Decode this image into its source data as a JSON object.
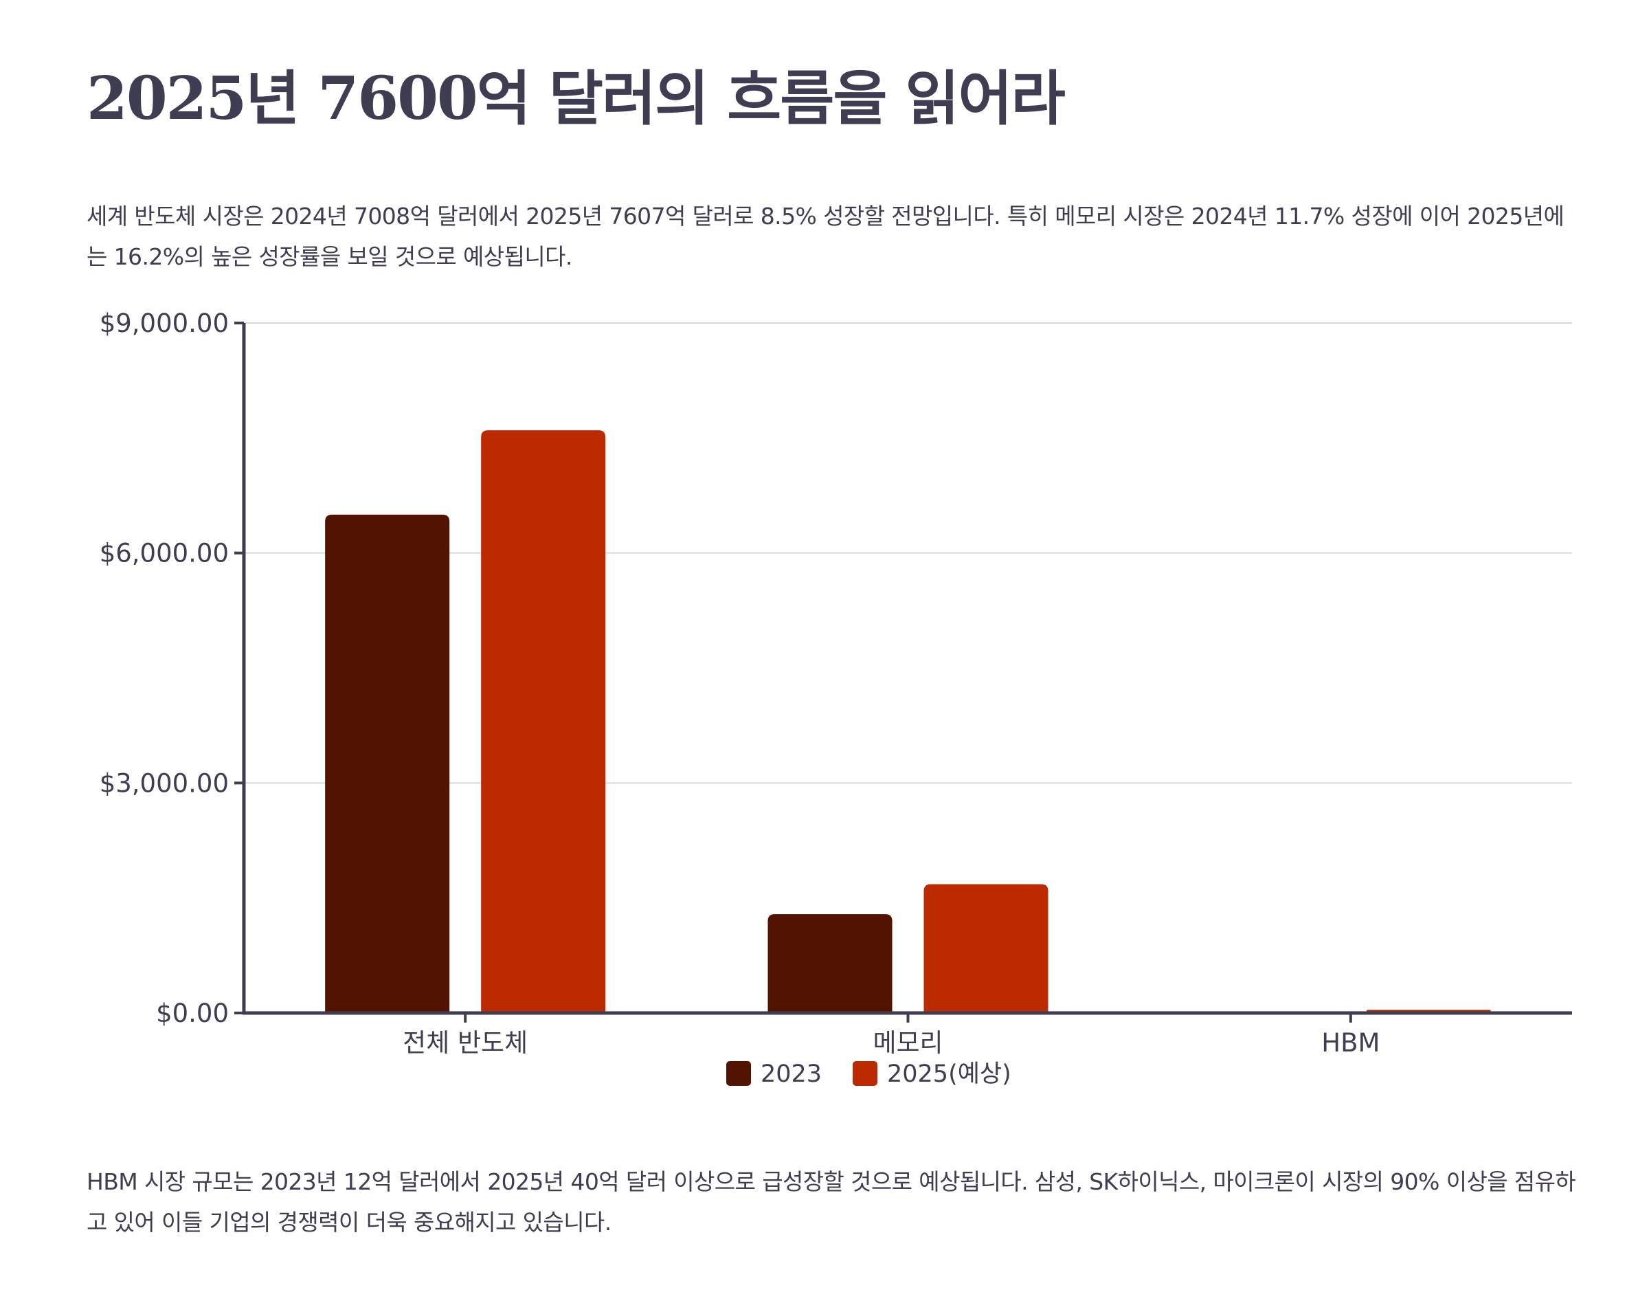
{
  "title": "2025년 7600억 달러의 흐름을 읽어라",
  "intro_text": "세계 반도체 시장은 2024년 7008억 달러에서 2025년 7607억 달러로 8.5% 성장할 전망입니다. 특히 메모리 시장은 2024년 11.7% 성장에 이어 2025년에는 16.2%의 높은 성장률을 보일 것으로 예상됩니다.",
  "outro_text": "HBM 시장 규모는 2023년 12억 달러에서 2025년 40억 달러 이상으로 급성장할 것으로 예상됩니다. 삼성, SK하이닉스, 마이크론이 시장의 90% 이상을 점유하고 있어 이들 기업의 경쟁력이 더욱 중요해지고 있습니다.",
  "colors": {
    "series_2023": "#521400",
    "series_2025": "#bb2a00",
    "axis": "#3f3d52",
    "grid": "#d8d8d8"
  },
  "chart_data": {
    "type": "bar",
    "title": "",
    "xlabel": "",
    "ylabel": "",
    "categories": [
      "전체 반도체",
      "메모리",
      "HBM"
    ],
    "series": [
      {
        "name": "2023",
        "values": [
          6500,
          1290,
          12
        ]
      },
      {
        "name": "2025(예상)",
        "values": [
          7600,
          1680,
          40
        ]
      }
    ],
    "ylim": [
      0,
      9000
    ],
    "yticks": [
      0,
      3000,
      6000,
      9000
    ],
    "ytick_labels": [
      "$0.00",
      "$3,000.00",
      "$6,000.00",
      "$9,000.00"
    ],
    "grid": true,
    "legend_position": "bottom-center"
  }
}
